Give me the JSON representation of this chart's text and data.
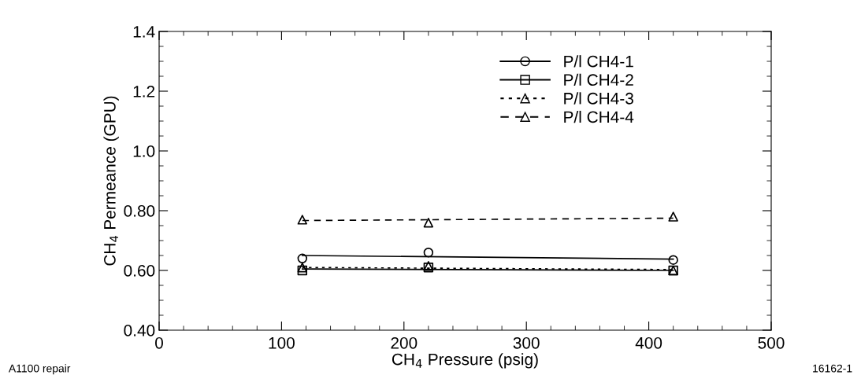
{
  "chart_data": {
    "type": "scatter",
    "xlabel": "CH$_{4}$ Pressure (psig)",
    "ylabel": "CH$_{4}$ Permeance (GPU)",
    "xlim": [
      0,
      500
    ],
    "xticks": [
      0,
      100,
      200,
      300,
      400,
      500
    ],
    "ylim": [
      0.4,
      1.4
    ],
    "yticks": [
      {
        "value": 0.4,
        "label": "0.40"
      },
      {
        "value": 0.6,
        "label": "0.60"
      },
      {
        "value": 0.8,
        "label": "0.80"
      },
      {
        "value": 1.0,
        "label": "1.0"
      },
      {
        "value": 1.2,
        "label": "1.2"
      },
      {
        "value": 1.4,
        "label": "1.4"
      }
    ],
    "grid": false,
    "legend": "top right",
    "series": [
      {
        "name": "P/l CH4-1",
        "marker": "circle",
        "color": "#000000",
        "x": [
          117,
          220,
          420
        ],
        "values": [
          0.64,
          0.66,
          0.635
        ]
      },
      {
        "type": "line",
        "line_style": "solid",
        "marker": "none",
        "color": "#000000",
        "x": [
          117,
          420
        ],
        "values": [
          0.65,
          0.638
        ]
      },
      {
        "name": "P/l CH4-2",
        "marker": "square",
        "color": "#000000",
        "x": [
          117,
          220,
          420
        ],
        "values": [
          0.6,
          0.61,
          0.6
        ]
      },
      {
        "type": "line",
        "line_style": "solid",
        "marker": "none",
        "color": "#000000",
        "x": [
          117,
          420
        ],
        "values": [
          0.605,
          0.6
        ]
      },
      {
        "name": "P/l CH4-3",
        "marker": "triangle",
        "color": "#000000",
        "x": [
          117,
          220,
          420
        ],
        "values": [
          0.61,
          0.615,
          0.6
        ]
      },
      {
        "type": "line",
        "line_style": "dotted",
        "marker": "none",
        "color": "#000000",
        "x": [
          117,
          420
        ],
        "values": [
          0.61,
          0.603
        ]
      },
      {
        "name": "P/l CH4-4",
        "marker": "triangle",
        "color": "#000000",
        "x": [
          117,
          220,
          420
        ],
        "values": [
          0.77,
          0.76,
          0.78
        ]
      },
      {
        "type": "line",
        "line_style": "dashed",
        "marker": "none",
        "color": "#000000",
        "x": [
          117,
          420
        ],
        "values": [
          0.767,
          0.775
        ]
      }
    ],
    "annotations": [
      "A1100 repair",
      "16162-1"
    ]
  }
}
